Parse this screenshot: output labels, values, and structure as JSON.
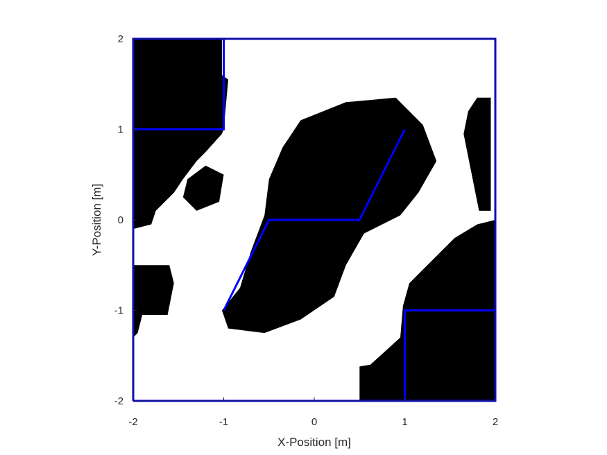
{
  "chart_data": {
    "type": "map",
    "title": "",
    "xlabel": "X-Position [m]",
    "ylabel": "Y-Position [m]",
    "xlim": [
      -2,
      2
    ],
    "ylim": [
      -2,
      2
    ],
    "xticks": [
      "-2",
      "-1",
      "0",
      "1",
      "2"
    ],
    "yticks": [
      "2",
      "1",
      "0",
      "-1",
      "-2"
    ],
    "xtick_values": [
      -2,
      -1,
      0,
      1,
      2
    ],
    "ytick_values": [
      2,
      1,
      0,
      -1,
      -2
    ],
    "grid": false,
    "colors": {
      "occupied": "#000000",
      "free": "#ffffff",
      "overlay": "#0000ff",
      "axis": "#262626"
    },
    "occupancy_regions": [
      {
        "name": "top-left-dark-region",
        "points": [
          [
            -2,
            2
          ],
          [
            -1.02,
            2
          ],
          [
            -1.02,
            1.6
          ],
          [
            -0.95,
            1.55
          ],
          [
            -1,
            1
          ],
          [
            -1.02,
            0.95
          ],
          [
            -1.2,
            0.75
          ],
          [
            -1.3,
            0.65
          ],
          [
            -1.45,
            0.45
          ],
          [
            -1.55,
            0.3
          ],
          [
            -1.75,
            0.1
          ],
          [
            -1.8,
            -0.05
          ],
          [
            -2,
            -0.1
          ]
        ]
      },
      {
        "name": "left-middle-dark-region",
        "points": [
          [
            -2,
            -0.5
          ],
          [
            -1.6,
            -0.5
          ],
          [
            -1.55,
            -0.7
          ],
          [
            -1.62,
            -1.05
          ],
          [
            -1.9,
            -1.05
          ],
          [
            -1.95,
            -1.25
          ],
          [
            -2,
            -1.3
          ]
        ]
      },
      {
        "name": "center-dark-ellipse",
        "points": [
          [
            -0.15,
            1.1
          ],
          [
            0.35,
            1.3
          ],
          [
            0.9,
            1.35
          ],
          [
            1.2,
            1.05
          ],
          [
            1.35,
            0.65
          ],
          [
            1.15,
            0.3
          ],
          [
            0.95,
            0.05
          ],
          [
            0.55,
            -0.15
          ],
          [
            0.35,
            -0.5
          ],
          [
            0.22,
            -0.85
          ],
          [
            -0.15,
            -1.1
          ],
          [
            -0.55,
            -1.25
          ],
          [
            -0.95,
            -1.2
          ],
          [
            -1.02,
            -1.0
          ],
          [
            -0.82,
            -0.75
          ],
          [
            -0.7,
            -0.35
          ],
          [
            -0.55,
            0.05
          ],
          [
            -0.5,
            0.45
          ],
          [
            -0.35,
            0.8
          ]
        ]
      },
      {
        "name": "top-right-dark-stripe",
        "points": [
          [
            1.8,
            1.35
          ],
          [
            1.95,
            1.35
          ],
          [
            1.95,
            0.1
          ],
          [
            1.82,
            0.1
          ],
          [
            1.65,
            0.95
          ],
          [
            1.7,
            1.2
          ]
        ]
      },
      {
        "name": "right-dark-wedge",
        "points": [
          [
            2,
            0.0
          ],
          [
            1.8,
            -0.05
          ],
          [
            1.55,
            -0.2
          ],
          [
            1.3,
            -0.45
          ],
          [
            1.05,
            -0.7
          ],
          [
            0.98,
            -0.95
          ],
          [
            0.95,
            -1.3
          ],
          [
            0.62,
            -1.6
          ],
          [
            0.5,
            -1.62
          ],
          [
            0.5,
            -2
          ],
          [
            2,
            -2
          ]
        ]
      },
      {
        "name": "left-thin-dark-band",
        "points": [
          [
            -1.2,
            0.6
          ],
          [
            -1.0,
            0.5
          ],
          [
            -1.05,
            0.2
          ],
          [
            -1.3,
            0.1
          ],
          [
            -1.45,
            0.25
          ],
          [
            -1.4,
            0.45
          ]
        ]
      }
    ],
    "series": [
      {
        "name": "",
        "type": "line",
        "color": "#0000ff",
        "x": [
          -1,
          -0.5,
          0.5,
          1
        ],
        "y": [
          -1,
          0,
          0,
          1
        ]
      },
      {
        "name": "",
        "type": "line",
        "color": "#0000ff",
        "x": [
          -2,
          -1,
          -1,
          -2,
          -2
        ],
        "y": [
          1,
          1,
          2,
          2,
          1
        ]
      },
      {
        "name": "",
        "type": "line",
        "color": "#0000ff",
        "x": [
          1,
          2,
          2,
          1,
          1
        ],
        "y": [
          -2,
          -2,
          -1,
          -1,
          -2
        ]
      },
      {
        "name": "",
        "type": "line",
        "color": "#0000ff",
        "x": [
          -2,
          2,
          2,
          -2,
          -2
        ],
        "y": [
          -2,
          -2,
          2,
          2,
          -2
        ]
      }
    ]
  }
}
